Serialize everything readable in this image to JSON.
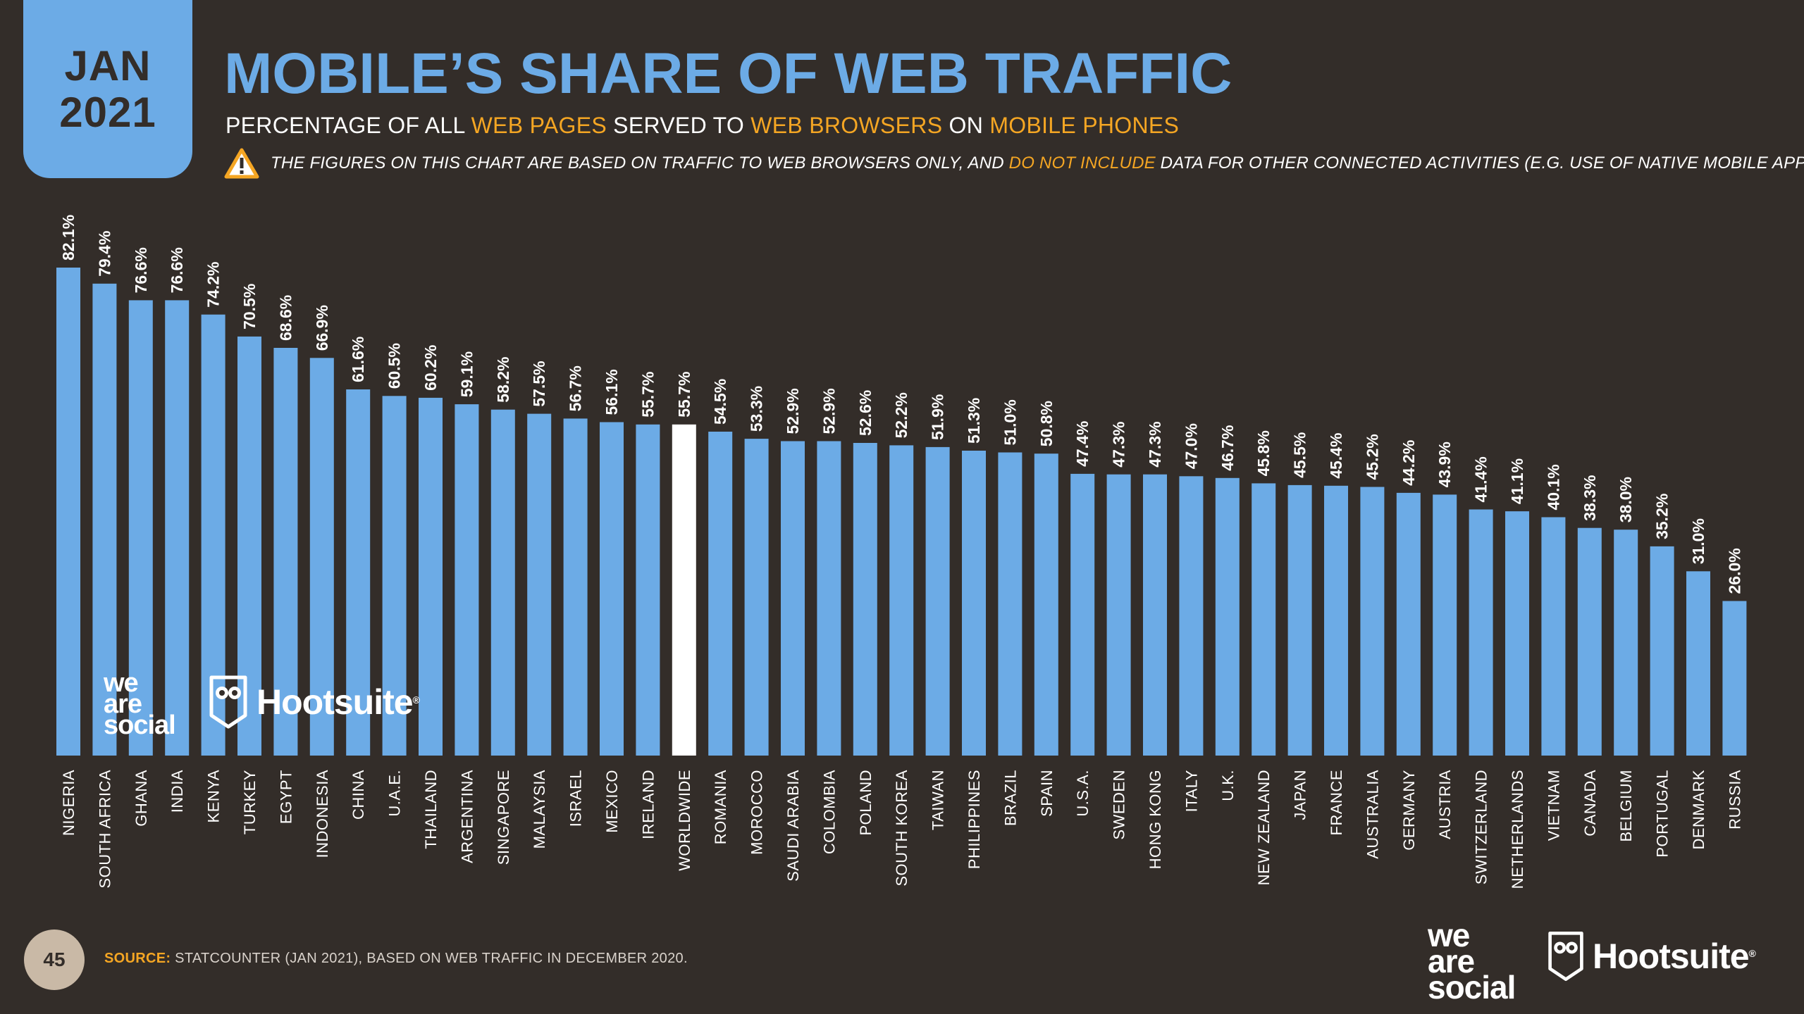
{
  "badge": {
    "month": "JAN",
    "year": "2021"
  },
  "title": "MOBILE’S SHARE OF WEB TRAFFIC",
  "subtitle": {
    "p1": "PERCENTAGE OF ALL ",
    "h1": "WEB PAGES",
    "p2": " SERVED TO ",
    "h2": "WEB BROWSERS",
    "p3": " ON ",
    "h3": "MOBILE PHONES"
  },
  "warning": {
    "p1": "THE FIGURES ON THIS CHART ARE BASED ON TRAFFIC TO WEB BROWSERS ONLY, AND ",
    "h1": "DO NOT INCLUDE",
    "p2": " DATA FOR OTHER CONNECTED ACTIVITIES (E.G. USE OF NATIVE MOBILE APPS)",
    "icon": "warning-icon"
  },
  "colors": {
    "bar": "#6cabe6",
    "highlight": "#ffffff",
    "accent": "#f5a623",
    "background": "#332d29"
  },
  "chart_data": {
    "type": "bar",
    "title": "MOBILE’S SHARE OF WEB TRAFFIC",
    "xlabel": "",
    "ylabel": "",
    "ylim": [
      0,
      82.1
    ],
    "highlight": "WORLDWIDE",
    "categories": [
      "NIGERIA",
      "SOUTH AFRICA",
      "GHANA",
      "INDIA",
      "KENYA",
      "TURKEY",
      "EGYPT",
      "INDONESIA",
      "CHINA",
      "U.A.E.",
      "THAILAND",
      "ARGENTINA",
      "SINGAPORE",
      "MALAYSIA",
      "ISRAEL",
      "MEXICO",
      "IRELAND",
      "WORLDWIDE",
      "ROMANIA",
      "MOROCCO",
      "SAUDI ARABIA",
      "COLOMBIA",
      "POLAND",
      "SOUTH KOREA",
      "TAIWAN",
      "PHILIPPINES",
      "BRAZIL",
      "SPAIN",
      "U.S.A.",
      "SWEDEN",
      "HONG KONG",
      "ITALY",
      "U.K.",
      "NEW ZEALAND",
      "JAPAN",
      "FRANCE",
      "AUSTRALIA",
      "GERMANY",
      "AUSTRIA",
      "SWITZERLAND",
      "NETHERLANDS",
      "VIETNAM",
      "CANADA",
      "BELGIUM",
      "PORTUGAL",
      "DENMARK",
      "RUSSIA"
    ],
    "values": [
      82.1,
      79.4,
      76.6,
      76.6,
      74.2,
      70.5,
      68.6,
      66.9,
      61.6,
      60.5,
      60.2,
      59.1,
      58.2,
      57.5,
      56.7,
      56.1,
      55.7,
      55.7,
      54.5,
      53.3,
      52.9,
      52.9,
      52.6,
      52.2,
      51.9,
      51.3,
      51.0,
      50.8,
      47.4,
      47.3,
      47.3,
      47.0,
      46.7,
      45.8,
      45.5,
      45.4,
      45.2,
      44.2,
      43.9,
      41.4,
      41.1,
      40.1,
      38.3,
      38.0,
      35.2,
      31.0,
      26.0
    ],
    "labels": [
      "82.1%",
      "79.4%",
      "76.6%",
      "76.6%",
      "74.2%",
      "70.5%",
      "68.6%",
      "66.9%",
      "61.6%",
      "60.5%",
      "60.2%",
      "59.1%",
      "58.2%",
      "57.5%",
      "56.7%",
      "56.1%",
      "55.7%",
      "55.7%",
      "54.5%",
      "53.3%",
      "52.9%",
      "52.9%",
      "52.6%",
      "52.2%",
      "51.9%",
      "51.3%",
      "51.0%",
      "50.8%",
      "47.4%",
      "47.3%",
      "47.3%",
      "47.0%",
      "46.7%",
      "45.8%",
      "45.5%",
      "45.4%",
      "45.2%",
      "44.2%",
      "43.9%",
      "41.4%",
      "41.1%",
      "40.1%",
      "38.3%",
      "38.0%",
      "35.2%",
      "31.0%",
      "26.0%"
    ]
  },
  "brands": {
    "chart_wearesocial": [
      "we",
      "are",
      "social"
    ],
    "chart_hootsuite": "Hootsuite",
    "footer_wearesocial": [
      "we",
      "are",
      "social"
    ],
    "footer_hootsuite": "Hootsuite",
    "registered": "®"
  },
  "footer": {
    "page_number": "45",
    "source_label": "SOURCE:",
    "source_text": " STATCOUNTER (JAN 2021), BASED ON WEB TRAFFIC IN DECEMBER 2020."
  }
}
